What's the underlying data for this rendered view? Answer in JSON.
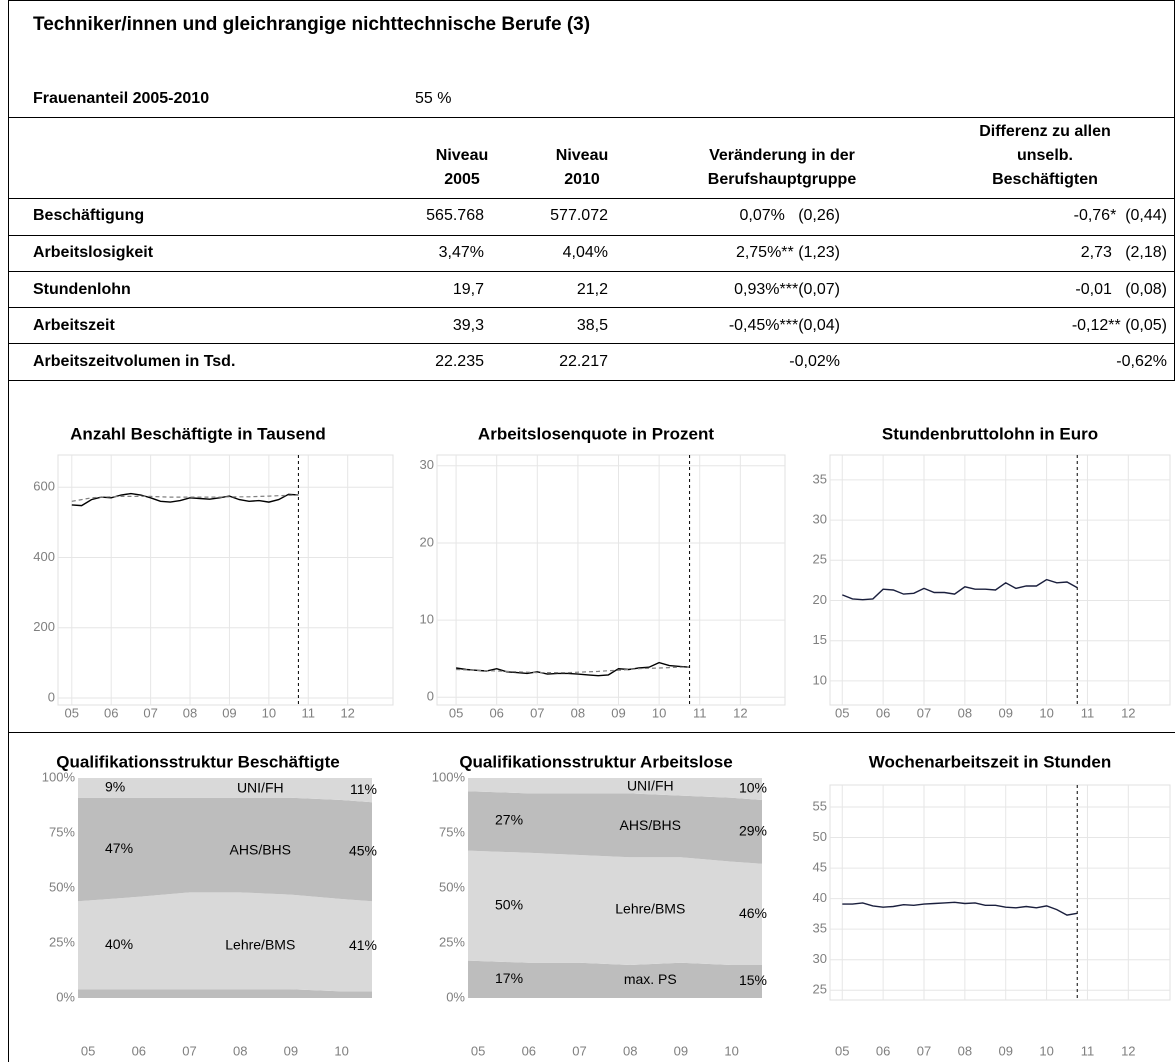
{
  "header": {
    "title": "Techniker/innen und gleichrangige nichttechnische Berufe (3)",
    "share_label": "Frauenanteil 2005-2010",
    "share_value": "55 %"
  },
  "table": {
    "columns": [
      [
        "Niveau",
        "2005"
      ],
      [
        "Niveau",
        "2010"
      ],
      [
        "Veränderung in der",
        "Berufshauptgruppe"
      ],
      [
        "Differenz zu allen",
        "unselb.",
        "Beschäftigten"
      ]
    ],
    "rows": [
      {
        "label": "Beschäftigung",
        "cells": [
          "565.768",
          "577.072",
          "0,07%   (0,26)",
          "-0,76*  (0,44)"
        ]
      },
      {
        "label": "Arbeitslosigkeit",
        "cells": [
          "3,47%",
          "4,04%",
          "2,75%** (1,23)",
          "2,73   (2,18)"
        ]
      },
      {
        "label": "Stundenlohn",
        "cells": [
          "19,7",
          "21,2",
          "0,93%***(0,07)",
          "-0,01   (0,08)"
        ]
      },
      {
        "label": "Arbeitszeit",
        "cells": [
          "39,3",
          "38,5",
          "-0,45%***(0,04)",
          "-0,12** (0,05)"
        ]
      },
      {
        "label": "Arbeitszeitvolumen in Tsd.",
        "cells": [
          "22.235",
          "22.217",
          "-0,02%",
          "-0,62%"
        ]
      }
    ]
  },
  "chart_data": [
    {
      "type": "line",
      "title": "Anzahl Beschäftigte in Tausend",
      "x": [
        2005,
        2005.25,
        2005.5,
        2005.75,
        2006,
        2006.25,
        2006.5,
        2006.75,
        2007,
        2007.25,
        2007.5,
        2007.75,
        2008,
        2008.25,
        2008.5,
        2008.75,
        2009,
        2009.25,
        2009.5,
        2009.75,
        2010,
        2010.25,
        2010.5,
        2010.75
      ],
      "series": [
        {
          "color": "#000000",
          "values": [
            550,
            548,
            565,
            572,
            570,
            578,
            582,
            578,
            570,
            560,
            558,
            562,
            570,
            568,
            566,
            570,
            575,
            565,
            560,
            562,
            558,
            565,
            580,
            578
          ]
        },
        {
          "color": "#808080",
          "dashed": true,
          "values": [
            560,
            565,
            570,
            572,
            573,
            574,
            574,
            574,
            574,
            573,
            572,
            572,
            572,
            572,
            572,
            572,
            573,
            573,
            573,
            574,
            575,
            576,
            577,
            578
          ]
        }
      ],
      "xlim": [
        2004.65,
        2013.15
      ],
      "xticks": [
        {
          "value": 2005,
          "label": "05"
        },
        {
          "value": 2006,
          "label": "06"
        },
        {
          "value": 2007,
          "label": "07"
        },
        {
          "value": 2008,
          "label": "08"
        },
        {
          "value": 2009,
          "label": "09"
        },
        {
          "value": 2010,
          "label": "10"
        },
        {
          "value": 2011,
          "label": "11"
        },
        {
          "value": 2012,
          "label": "12"
        }
      ],
      "ylim": [
        -20,
        692
      ],
      "yticks": [
        0,
        200,
        400,
        600
      ],
      "vline": 2010.75,
      "grid": true
    },
    {
      "type": "line",
      "title": "Arbeitslosenquote in Prozent",
      "x": [
        2005,
        2005.25,
        2005.5,
        2005.75,
        2006,
        2006.25,
        2006.5,
        2006.75,
        2007,
        2007.25,
        2007.5,
        2007.75,
        2008,
        2008.25,
        2008.5,
        2008.75,
        2009,
        2009.25,
        2009.5,
        2009.75,
        2010,
        2010.25,
        2010.5,
        2010.75
      ],
      "series": [
        {
          "color": "#000000",
          "values": [
            3.8,
            3.6,
            3.5,
            3.4,
            3.7,
            3.3,
            3.2,
            3.1,
            3.3,
            3.0,
            3.1,
            3.1,
            3.0,
            2.9,
            2.8,
            2.9,
            3.7,
            3.6,
            3.8,
            3.9,
            4.5,
            4.1,
            4.0,
            3.9
          ]
        },
        {
          "color": "#808080",
          "dashed": true,
          "values": [
            3.6,
            3.55,
            3.5,
            3.45,
            3.4,
            3.35,
            3.3,
            3.25,
            3.2,
            3.2,
            3.2,
            3.2,
            3.25,
            3.3,
            3.35,
            3.45,
            3.5,
            3.6,
            3.7,
            3.75,
            3.8,
            3.85,
            3.9,
            3.9
          ]
        }
      ],
      "xlim": [
        2004.53,
        2013.1
      ],
      "xticks": [
        {
          "value": 2005,
          "label": "05"
        },
        {
          "value": 2006,
          "label": "06"
        },
        {
          "value": 2007,
          "label": "07"
        },
        {
          "value": 2008,
          "label": "08"
        },
        {
          "value": 2009,
          "label": "09"
        },
        {
          "value": 2010,
          "label": "10"
        },
        {
          "value": 2011,
          "label": "11"
        },
        {
          "value": 2012,
          "label": "12"
        }
      ],
      "ylim": [
        -1,
        31.4
      ],
      "yticks": [
        0,
        10,
        20,
        30
      ],
      "vline": 2010.75,
      "grid": true
    },
    {
      "type": "line",
      "title": "Stundenbruttolohn in Euro",
      "x": [
        2005,
        2005.25,
        2005.5,
        2005.75,
        2006,
        2006.25,
        2006.5,
        2006.75,
        2007,
        2007.25,
        2007.5,
        2007.75,
        2008,
        2008.25,
        2008.5,
        2008.75,
        2009,
        2009.25,
        2009.5,
        2009.75,
        2010,
        2010.25,
        2010.5,
        2010.75
      ],
      "series": [
        {
          "color": "#1a1f3d",
          "values": [
            20.7,
            20.2,
            20.1,
            20.2,
            21.4,
            21.3,
            20.8,
            20.9,
            21.5,
            21.0,
            21.0,
            20.8,
            21.7,
            21.4,
            21.4,
            21.3,
            22.2,
            21.5,
            21.8,
            21.8,
            22.6,
            22.2,
            22.3,
            21.6
          ]
        }
      ],
      "xlim": [
        2004.7,
        2013.02
      ],
      "xticks": [
        {
          "value": 2005,
          "label": "05"
        },
        {
          "value": 2006,
          "label": "06"
        },
        {
          "value": 2007,
          "label": "07"
        },
        {
          "value": 2008,
          "label": "08"
        },
        {
          "value": 2009,
          "label": "09"
        },
        {
          "value": 2010,
          "label": "10"
        },
        {
          "value": 2011,
          "label": "11"
        },
        {
          "value": 2012,
          "label": "12"
        }
      ],
      "ylim": [
        7,
        38.1
      ],
      "yticks": [
        10,
        15,
        20,
        25,
        30,
        35
      ],
      "vline": 2010.75,
      "grid": true
    },
    {
      "type": "area",
      "title": "Qualifikationsstruktur Beschäftigte",
      "x": [
        2004.8,
        2006,
        2007,
        2008,
        2009,
        2010,
        2010.6
      ],
      "series": [
        {
          "color": "#bdbdbd",
          "values": [
            4,
            4,
            4,
            4,
            4,
            3,
            3
          ]
        },
        {
          "name": "Lehre/BMS",
          "color": "#d9d9d9",
          "values": [
            40,
            42,
            44,
            44,
            43,
            42,
            41
          ],
          "value_labels": [
            "40%",
            null,
            null,
            null,
            null,
            null,
            "41%"
          ]
        },
        {
          "name": "AHS/BHS",
          "color": "#bdbdbd",
          "values": [
            47,
            45,
            43,
            43,
            44,
            45,
            45
          ],
          "value_labels": [
            "47%",
            null,
            null,
            null,
            null,
            null,
            "45%"
          ]
        },
        {
          "name": "UNI/FH",
          "color": "#d9d9d9",
          "values": [
            9,
            9,
            9,
            9,
            9,
            10,
            11
          ],
          "value_labels": [
            "9%",
            null,
            null,
            null,
            null,
            null,
            "11%"
          ]
        }
      ],
      "xlim": [
        2004.8,
        2010.6
      ],
      "xticks": [
        {
          "value": 2005,
          "label": "05"
        },
        {
          "value": 2006,
          "label": "06"
        },
        {
          "value": 2007,
          "label": "07"
        },
        {
          "value": 2008,
          "label": "08"
        },
        {
          "value": 2009,
          "label": "09"
        },
        {
          "value": 2010,
          "label": "10"
        }
      ],
      "ylim": [
        0,
        100
      ],
      "yticks": [
        {
          "value": 0,
          "label": "0%"
        },
        {
          "value": 25,
          "label": "25%"
        },
        {
          "value": 50,
          "label": "50%"
        },
        {
          "value": 75,
          "label": "75%"
        },
        {
          "value": 100,
          "label": "100%"
        }
      ],
      "grid": false
    },
    {
      "type": "area",
      "title": "Qualifikationsstruktur Arbeitslose",
      "x": [
        2004.8,
        2006,
        2007,
        2008,
        2009,
        2010,
        2010.6
      ],
      "series": [
        {
          "name": "max. PS",
          "color": "#bdbdbd",
          "values": [
            17,
            16,
            16,
            15,
            16,
            15,
            15
          ],
          "value_labels": [
            "17%",
            null,
            null,
            null,
            null,
            null,
            "15%"
          ]
        },
        {
          "name": "Lehre/BMS",
          "color": "#d9d9d9",
          "values": [
            50,
            50,
            49,
            49,
            48,
            47,
            46
          ],
          "value_labels": [
            "50%",
            null,
            null,
            null,
            null,
            null,
            "46%"
          ]
        },
        {
          "name": "AHS/BHS",
          "color": "#bdbdbd",
          "values": [
            27,
            27,
            28,
            29,
            28,
            29,
            29
          ],
          "value_labels": [
            "27%",
            null,
            null,
            null,
            null,
            null,
            "29%"
          ]
        },
        {
          "name": "UNI/FH",
          "color": "#d9d9d9",
          "values": [
            6,
            7,
            7,
            7,
            8,
            9,
            10
          ],
          "value_labels": [
            null,
            null,
            null,
            null,
            null,
            null,
            "10%"
          ]
        }
      ],
      "xlim": [
        2004.8,
        2010.6
      ],
      "xticks": [
        {
          "value": 2005,
          "label": "05"
        },
        {
          "value": 2006,
          "label": "06"
        },
        {
          "value": 2007,
          "label": "07"
        },
        {
          "value": 2008,
          "label": "08"
        },
        {
          "value": 2009,
          "label": "09"
        },
        {
          "value": 2010,
          "label": "10"
        }
      ],
      "ylim": [
        0,
        100
      ],
      "yticks": [
        {
          "value": 0,
          "label": "0%"
        },
        {
          "value": 25,
          "label": "25%"
        },
        {
          "value": 50,
          "label": "50%"
        },
        {
          "value": 75,
          "label": "75%"
        },
        {
          "value": 100,
          "label": "100%"
        }
      ],
      "grid": false
    },
    {
      "type": "line",
      "title": "Wochenarbeitszeit in Stunden",
      "x": [
        2005,
        2005.25,
        2005.5,
        2005.75,
        2006,
        2006.25,
        2006.5,
        2006.75,
        2007,
        2007.25,
        2007.5,
        2007.75,
        2008,
        2008.25,
        2008.5,
        2008.75,
        2009,
        2009.25,
        2009.5,
        2009.75,
        2010,
        2010.25,
        2010.5,
        2010.75
      ],
      "series": [
        {
          "color": "#1a1f3d",
          "values": [
            39.1,
            39.1,
            39.3,
            38.8,
            38.6,
            38.7,
            39.0,
            38.9,
            39.1,
            39.2,
            39.3,
            39.4,
            39.2,
            39.3,
            38.9,
            38.9,
            38.6,
            38.5,
            38.7,
            38.5,
            38.8,
            38.2,
            37.3,
            37.6
          ]
        }
      ],
      "xlim": [
        2004.7,
        2013.02
      ],
      "xticks": [
        {
          "value": 2005,
          "label": "05"
        },
        {
          "value": 2006,
          "label": "06"
        },
        {
          "value": 2007,
          "label": "07"
        },
        {
          "value": 2008,
          "label": "08"
        },
        {
          "value": 2009,
          "label": "09"
        },
        {
          "value": 2010,
          "label": "10"
        },
        {
          "value": 2011,
          "label": "11"
        },
        {
          "value": 2012,
          "label": "12"
        }
      ],
      "ylim": [
        23.4,
        58.6
      ],
      "yticks": [
        25,
        30,
        35,
        40,
        45,
        50,
        55
      ],
      "vline": 2010.75,
      "grid": true
    }
  ]
}
